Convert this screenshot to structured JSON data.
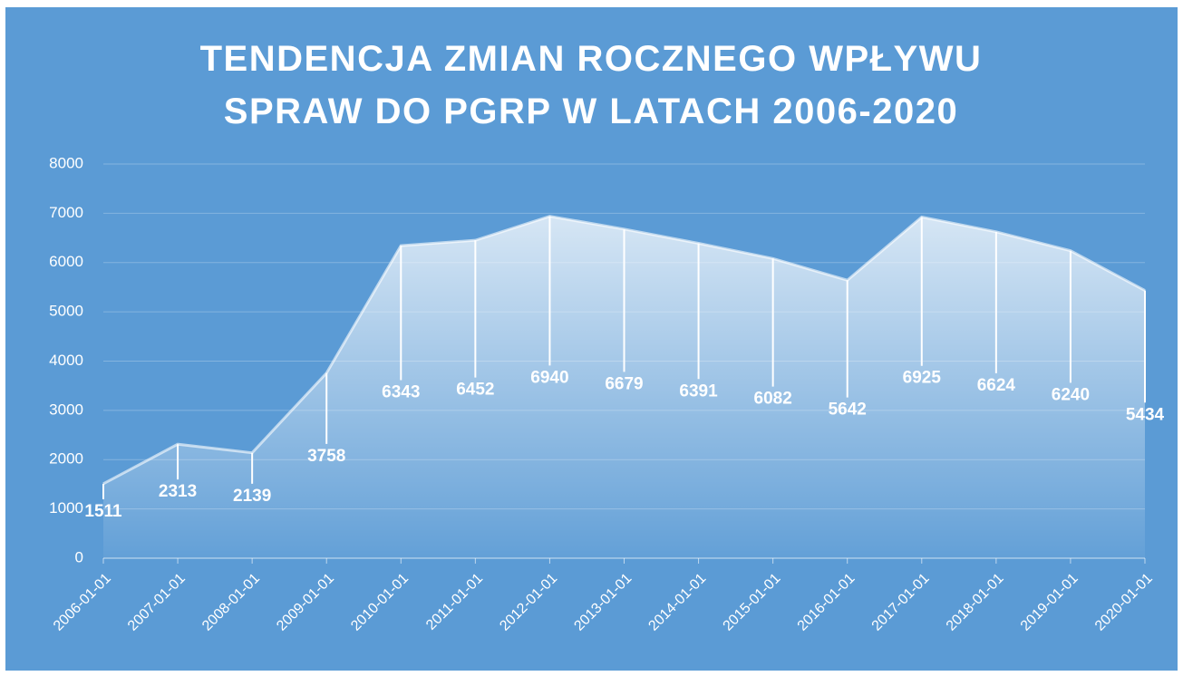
{
  "chart_data": {
    "type": "area",
    "title": "TENDENCJA ZMIAN ROCZNEGO WPŁYWU SPRAW DO PGRP W LATACH 2006-2020",
    "categories": [
      "2006-01-01",
      "2007-01-01",
      "2008-01-01",
      "2009-01-01",
      "2010-01-01",
      "2011-01-01",
      "2012-01-01",
      "2013-01-01",
      "2014-01-01",
      "2015-01-01",
      "2016-01-01",
      "2017-01-01",
      "2018-01-01",
      "2019-01-01",
      "2020-01-01"
    ],
    "values": [
      1511,
      2313,
      2139,
      3758,
      6343,
      6452,
      6940,
      6679,
      6391,
      6082,
      5642,
      6925,
      6624,
      6240,
      5434
    ],
    "color": "#ffffff",
    "ylim": [
      0,
      8000
    ],
    "yticks": [
      0,
      1000,
      2000,
      3000,
      4000,
      5000,
      6000,
      7000,
      8000
    ],
    "grid": true
  }
}
